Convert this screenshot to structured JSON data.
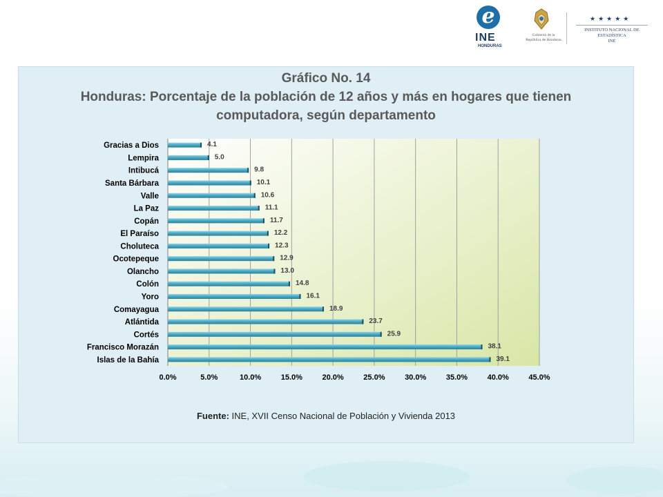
{
  "header": {
    "ine_logo_text": "INE",
    "ine_logo_subtext": "HONDURAS",
    "gob_logo_line1": "Gobierno de la",
    "gob_logo_line2": "República de Honduras",
    "inst_logo_stars": "★★★★★",
    "inst_logo_line1": "INSTITUTO NACIONAL DE",
    "inst_logo_line2": "ESTADÍSTICA",
    "inst_logo_line3": "INE"
  },
  "chart_data": {
    "type": "bar",
    "orientation": "horizontal",
    "title": "Gráfico No. 14",
    "subtitle_line1": "Honduras: Porcentaje de la población de 12 años y más en hogares que tienen",
    "subtitle_line2": "computadora, según departamento",
    "categories": [
      "Gracias a Dios",
      "Lempira",
      "Intibucá",
      "Santa Bárbara",
      "Valle",
      "La Paz",
      "Copán",
      "El Paraíso",
      "Choluteca",
      "Ocotepeque",
      "Olancho",
      "Colón",
      "Yoro",
      "Comayagua",
      "Atlántida",
      "Cortés",
      "Francisco Morazán",
      "Islas de la Bahía"
    ],
    "values": [
      4.1,
      5.0,
      9.8,
      10.1,
      10.6,
      11.1,
      11.7,
      12.2,
      12.3,
      12.9,
      13.0,
      14.8,
      16.1,
      18.9,
      23.7,
      25.9,
      38.1,
      39.1
    ],
    "data_labels": [
      "4.1",
      "5.0",
      "9.8",
      "10.1",
      "10.6",
      "11.1",
      "11.7",
      "12.2",
      "12.3",
      "12.9",
      "13.0",
      "14.8",
      "16.1",
      "18.9",
      "23.7",
      "25.9",
      "38.1",
      "39.1"
    ],
    "x_ticks": [
      "0.0%",
      "5.0%",
      "10.0%",
      "15.0%",
      "20.0%",
      "25.0%",
      "30.0%",
      "35.0%",
      "40.0%",
      "45.0%"
    ],
    "xlim": [
      0,
      45
    ],
    "xlabel": "",
    "ylabel": "",
    "grid": "vertical",
    "legend": "none",
    "colors": {
      "bar": "#4bacc6",
      "bar_dark": "#2e7f97",
      "grid": "#a0a0a0",
      "plot_bg_start": "#ffffff",
      "plot_bg_end": "#d8e6a6"
    }
  },
  "source": {
    "label": "Fuente:",
    "text": " INE, XVII Censo Nacional de Población y Vivienda 2013"
  }
}
